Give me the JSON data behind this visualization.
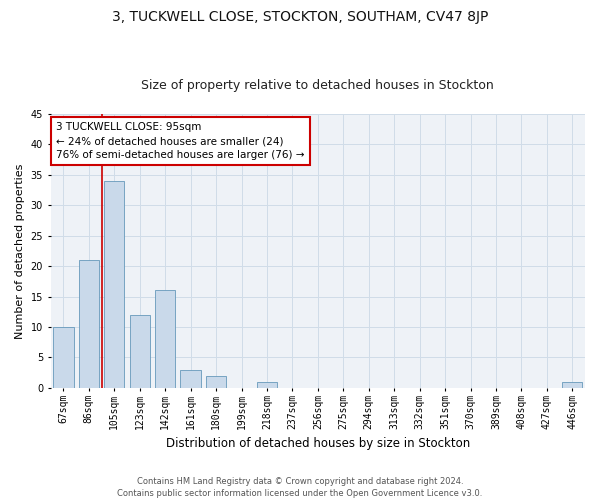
{
  "title": "3, TUCKWELL CLOSE, STOCKTON, SOUTHAM, CV47 8JP",
  "subtitle": "Size of property relative to detached houses in Stockton",
  "xlabel": "Distribution of detached houses by size in Stockton",
  "ylabel": "Number of detached properties",
  "categories": [
    "67sqm",
    "86sqm",
    "105sqm",
    "123sqm",
    "142sqm",
    "161sqm",
    "180sqm",
    "199sqm",
    "218sqm",
    "237sqm",
    "256sqm",
    "275sqm",
    "294sqm",
    "313sqm",
    "332sqm",
    "351sqm",
    "370sqm",
    "389sqm",
    "408sqm",
    "427sqm",
    "446sqm"
  ],
  "values": [
    10,
    21,
    34,
    12,
    16,
    3,
    2,
    0,
    1,
    0,
    0,
    0,
    0,
    0,
    0,
    0,
    0,
    0,
    0,
    0,
    1
  ],
  "bar_color": "#c9d9ea",
  "bar_edge_color": "#6699bb",
  "grid_color": "#d0dce8",
  "annotation_text": "3 TUCKWELL CLOSE: 95sqm\n← 24% of detached houses are smaller (24)\n76% of semi-detached houses are larger (76) →",
  "annotation_box_color": "#ffffff",
  "annotation_box_edge": "#cc0000",
  "vline_color": "#cc0000",
  "vline_x": 2.0,
  "ylim": [
    0,
    45
  ],
  "yticks": [
    0,
    5,
    10,
    15,
    20,
    25,
    30,
    35,
    40,
    45
  ],
  "footer_line1": "Contains HM Land Registry data © Crown copyright and database right 2024.",
  "footer_line2": "Contains public sector information licensed under the Open Government Licence v3.0.",
  "bg_color": "#eef2f7",
  "fig_bg_color": "#ffffff",
  "title_fontsize": 10,
  "subtitle_fontsize": 9,
  "ylabel_fontsize": 8,
  "xlabel_fontsize": 8.5,
  "tick_fontsize": 7,
  "annotation_fontsize": 7.5,
  "footer_fontsize": 6
}
